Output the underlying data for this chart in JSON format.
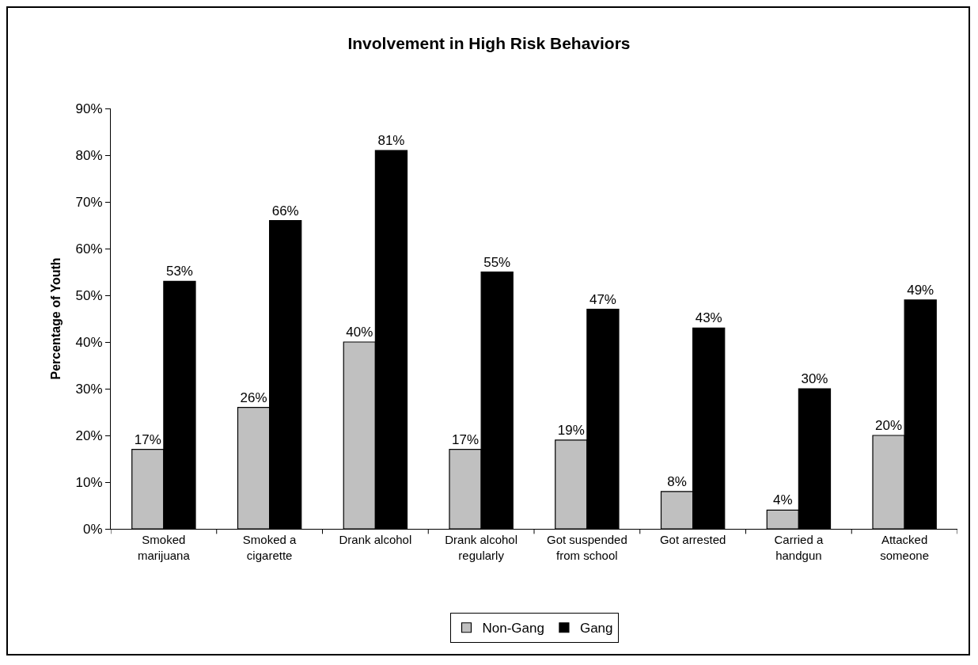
{
  "chart_data": {
    "type": "bar",
    "title": "Involvement in High Risk Behaviors",
    "ylabel": "Percentage of Youth",
    "categories": [
      "Smoked marijuana",
      "Smoked a cigarette",
      "Drank alcohol",
      "Drank alcohol regularly",
      "Got suspended from school",
      "Got arrested",
      "Carried a handgun",
      "Attacked someone"
    ],
    "series": [
      {
        "name": "Non-Gang",
        "color": "#c0c0c0",
        "values": [
          17,
          26,
          40,
          17,
          19,
          8,
          4,
          20
        ],
        "value_labels": [
          "17%",
          "26%",
          "40%",
          "17%",
          "19%",
          "8%",
          "4%",
          "20%"
        ]
      },
      {
        "name": "Gang",
        "color": "#000000",
        "values": [
          53,
          66,
          81,
          55,
          47,
          43,
          30,
          49
        ],
        "value_labels": [
          "53%",
          "66%",
          "81%",
          "55%",
          "47%",
          "43%",
          "30%",
          "49%"
        ]
      }
    ],
    "ylim": [
      0,
      90
    ],
    "yticks": [
      {
        "value": 0,
        "label": "0%"
      },
      {
        "value": 10,
        "label": "10%"
      },
      {
        "value": 20,
        "label": "20%"
      },
      {
        "value": 30,
        "label": "30%"
      },
      {
        "value": 40,
        "label": "40%"
      },
      {
        "value": 50,
        "label": "50%"
      },
      {
        "value": 60,
        "label": "60%"
      },
      {
        "value": 70,
        "label": "70%"
      },
      {
        "value": 80,
        "label": "80%"
      },
      {
        "value": 90,
        "label": "90%"
      }
    ],
    "grid": false,
    "legend": "bottom"
  }
}
